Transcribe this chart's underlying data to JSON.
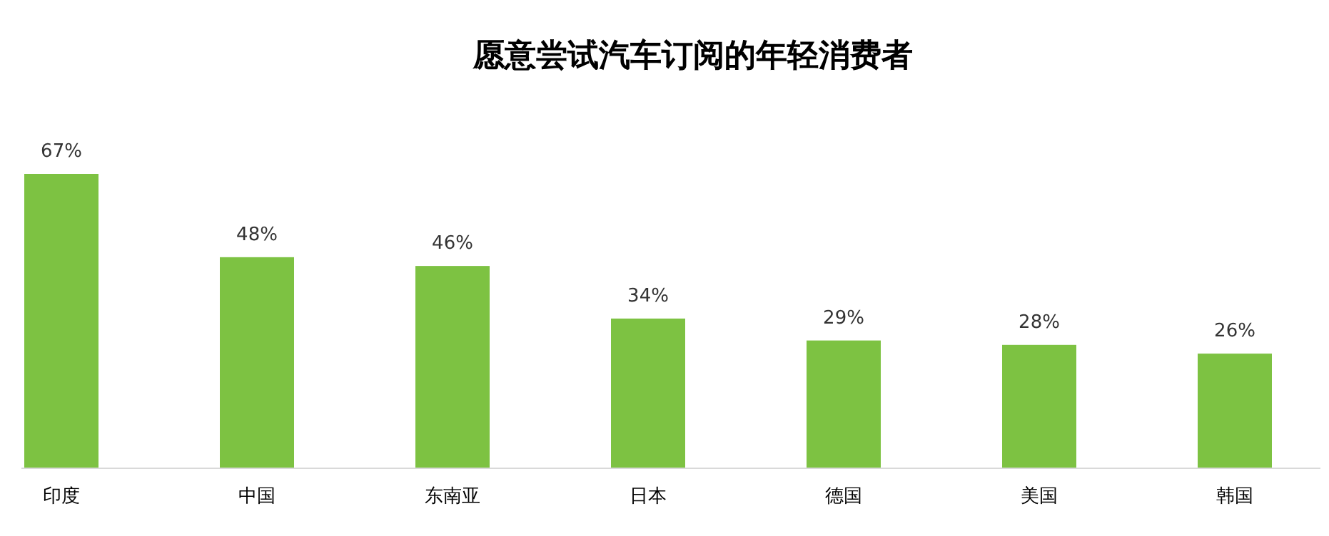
{
  "chart_data": {
    "type": "bar",
    "title": "愿意尝试汽车订阅的年轻消费者",
    "categories": [
      "印度",
      "中国",
      "东南亚",
      "日本",
      "德国",
      "美国",
      "韩国"
    ],
    "values": [
      67,
      48,
      46,
      34,
      29,
      28,
      26
    ],
    "value_labels": [
      "67%",
      "48%",
      "46%",
      "34%",
      "29%",
      "28%",
      "26%"
    ],
    "color": "#7dc242"
  }
}
